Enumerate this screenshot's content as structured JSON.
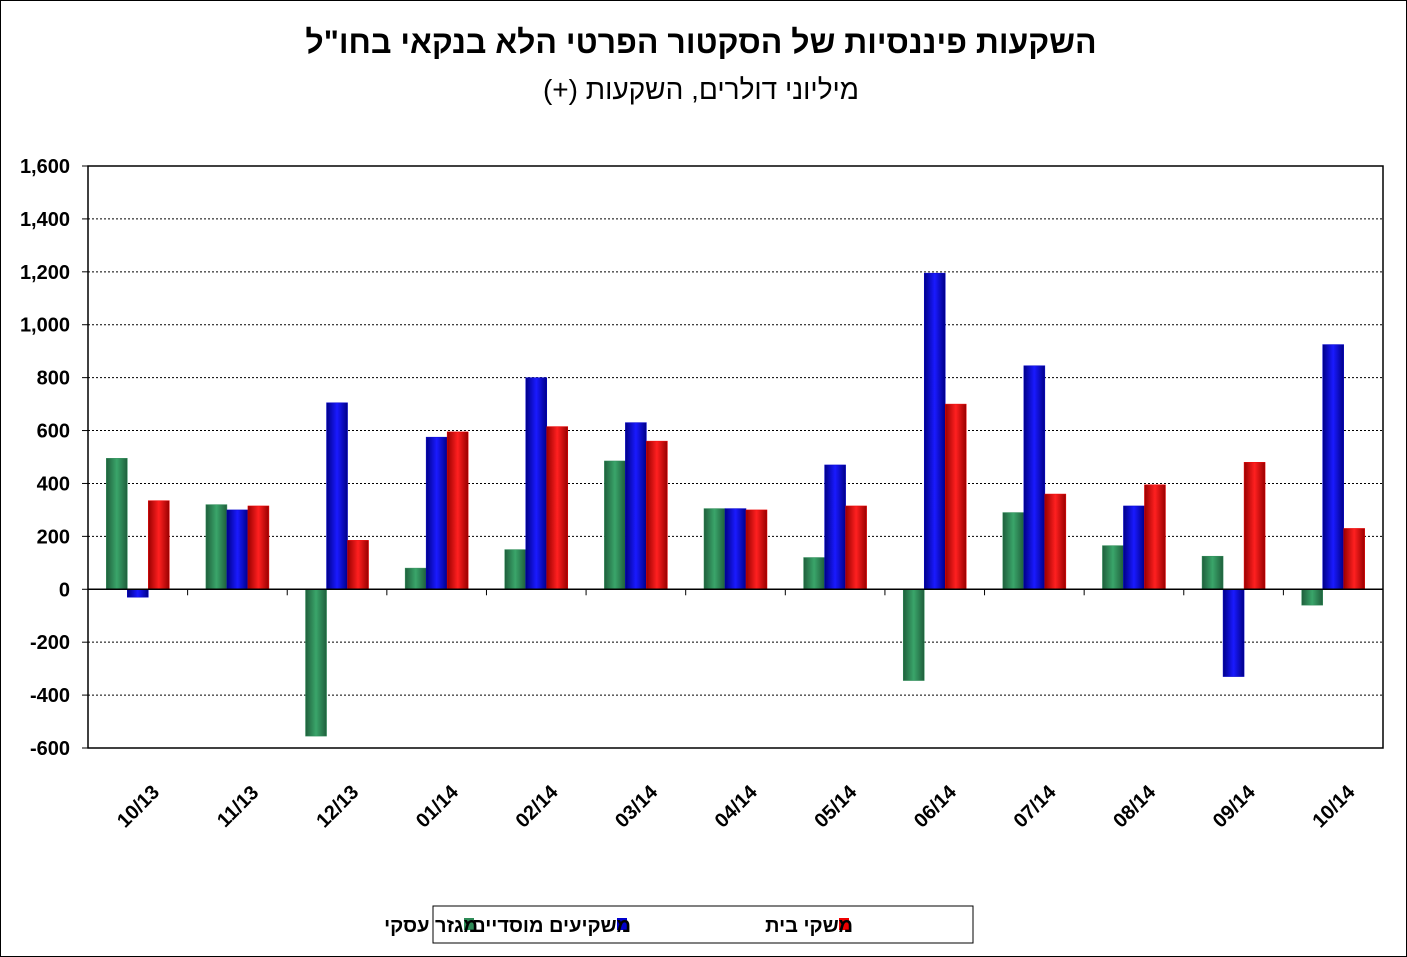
{
  "chart_data": {
    "type": "bar",
    "title": "השקעות פיננסיות של הסקטור הפרטי הלא בנקאי בחו\"ל",
    "subtitle": "מיליוני דולרים, השקעות (+)",
    "categories": [
      "10/13",
      "11/13",
      "12/13",
      "01/14",
      "02/14",
      "03/14",
      "04/14",
      "05/14",
      "06/14",
      "07/14",
      "08/14",
      "09/14",
      "10/14"
    ],
    "series": [
      {
        "name": "מגזר עסקי",
        "color": "#2e8b57",
        "values": [
          495,
          320,
          -555,
          80,
          150,
          485,
          305,
          120,
          -345,
          290,
          165,
          125,
          -60
        ]
      },
      {
        "name": "משקיעים מוסדיים",
        "color": "#0000cc",
        "values": [
          -30,
          300,
          705,
          575,
          800,
          630,
          305,
          470,
          1195,
          845,
          315,
          -330,
          925
        ]
      },
      {
        "name": "משקי בית",
        "color": "#ee0000",
        "values": [
          335,
          315,
          185,
          595,
          615,
          560,
          300,
          315,
          700,
          360,
          395,
          480,
          230
        ]
      }
    ],
    "ylim": [
      -600,
      1600
    ],
    "yticks": [
      "1,600",
      "1,400",
      "1,200",
      "1,000",
      "800",
      "600",
      "400",
      "200",
      "0",
      "-200",
      "-400",
      "-600"
    ],
    "grid": true,
    "legend_position": "bottom-center"
  }
}
